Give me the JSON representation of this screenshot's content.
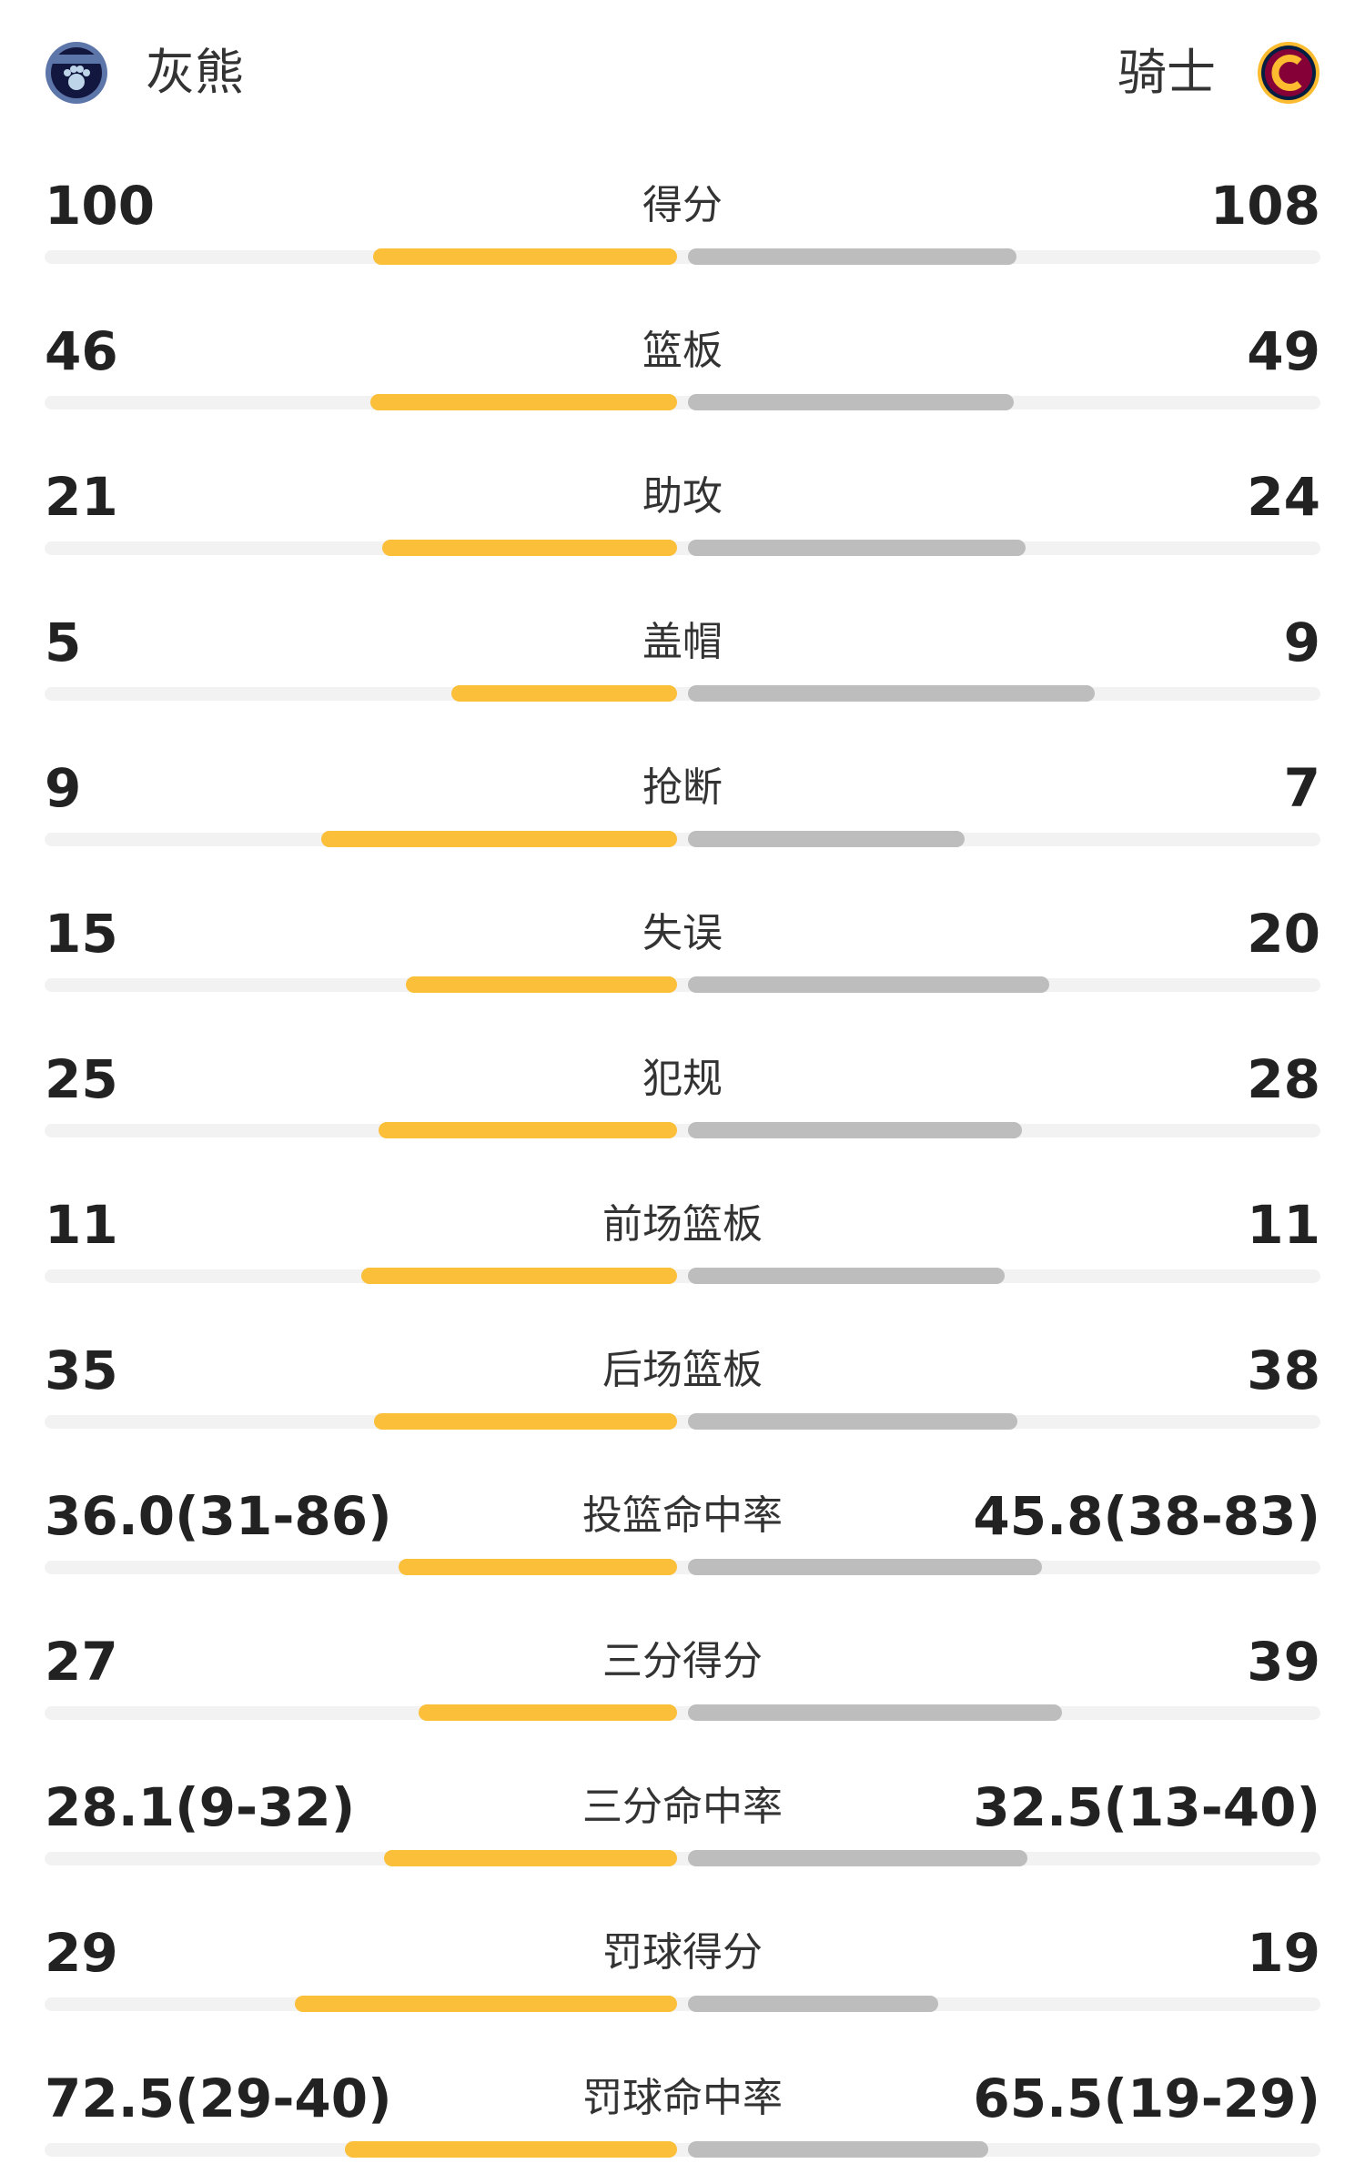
{
  "header": {
    "home_team": "灰熊",
    "away_team": "骑士"
  },
  "stats": [
    {
      "label": "得分",
      "home": 100,
      "away": 108
    },
    {
      "label": "篮板",
      "home": 46,
      "away": 49
    },
    {
      "label": "助攻",
      "home": 21,
      "away": 24
    },
    {
      "label": "盖帽",
      "home": 5,
      "away": 9
    },
    {
      "label": "抢断",
      "home": 9,
      "away": 7
    },
    {
      "label": "失误",
      "home": 15,
      "away": 20
    },
    {
      "label": "犯规",
      "home": 25,
      "away": 28
    },
    {
      "label": "前场篮板",
      "home": 11,
      "away": 11
    },
    {
      "label": "后场篮板",
      "home": 35,
      "away": 38
    },
    {
      "label": "投篮命中率",
      "home": {
        "value": 36.0,
        "label": "36.0(31-86)"
      },
      "away": {
        "value": 45.8,
        "label": "45.8(38-83)"
      }
    },
    {
      "label": "三分得分",
      "home": 27,
      "away": 39
    },
    {
      "label": "三分命中率",
      "home": {
        "value": 28.1,
        "label": "28.1(9-32)"
      },
      "away": {
        "value": 32.5,
        "label": "32.5(13-40)"
      }
    },
    {
      "label": "罚球得分",
      "home": 29,
      "away": 19
    },
    {
      "label": "罚球命中率",
      "home": {
        "value": 72.5,
        "label": "72.5(29-40)"
      },
      "away": {
        "value": 65.5,
        "label": "65.5(19-29)"
      }
    }
  ]
}
